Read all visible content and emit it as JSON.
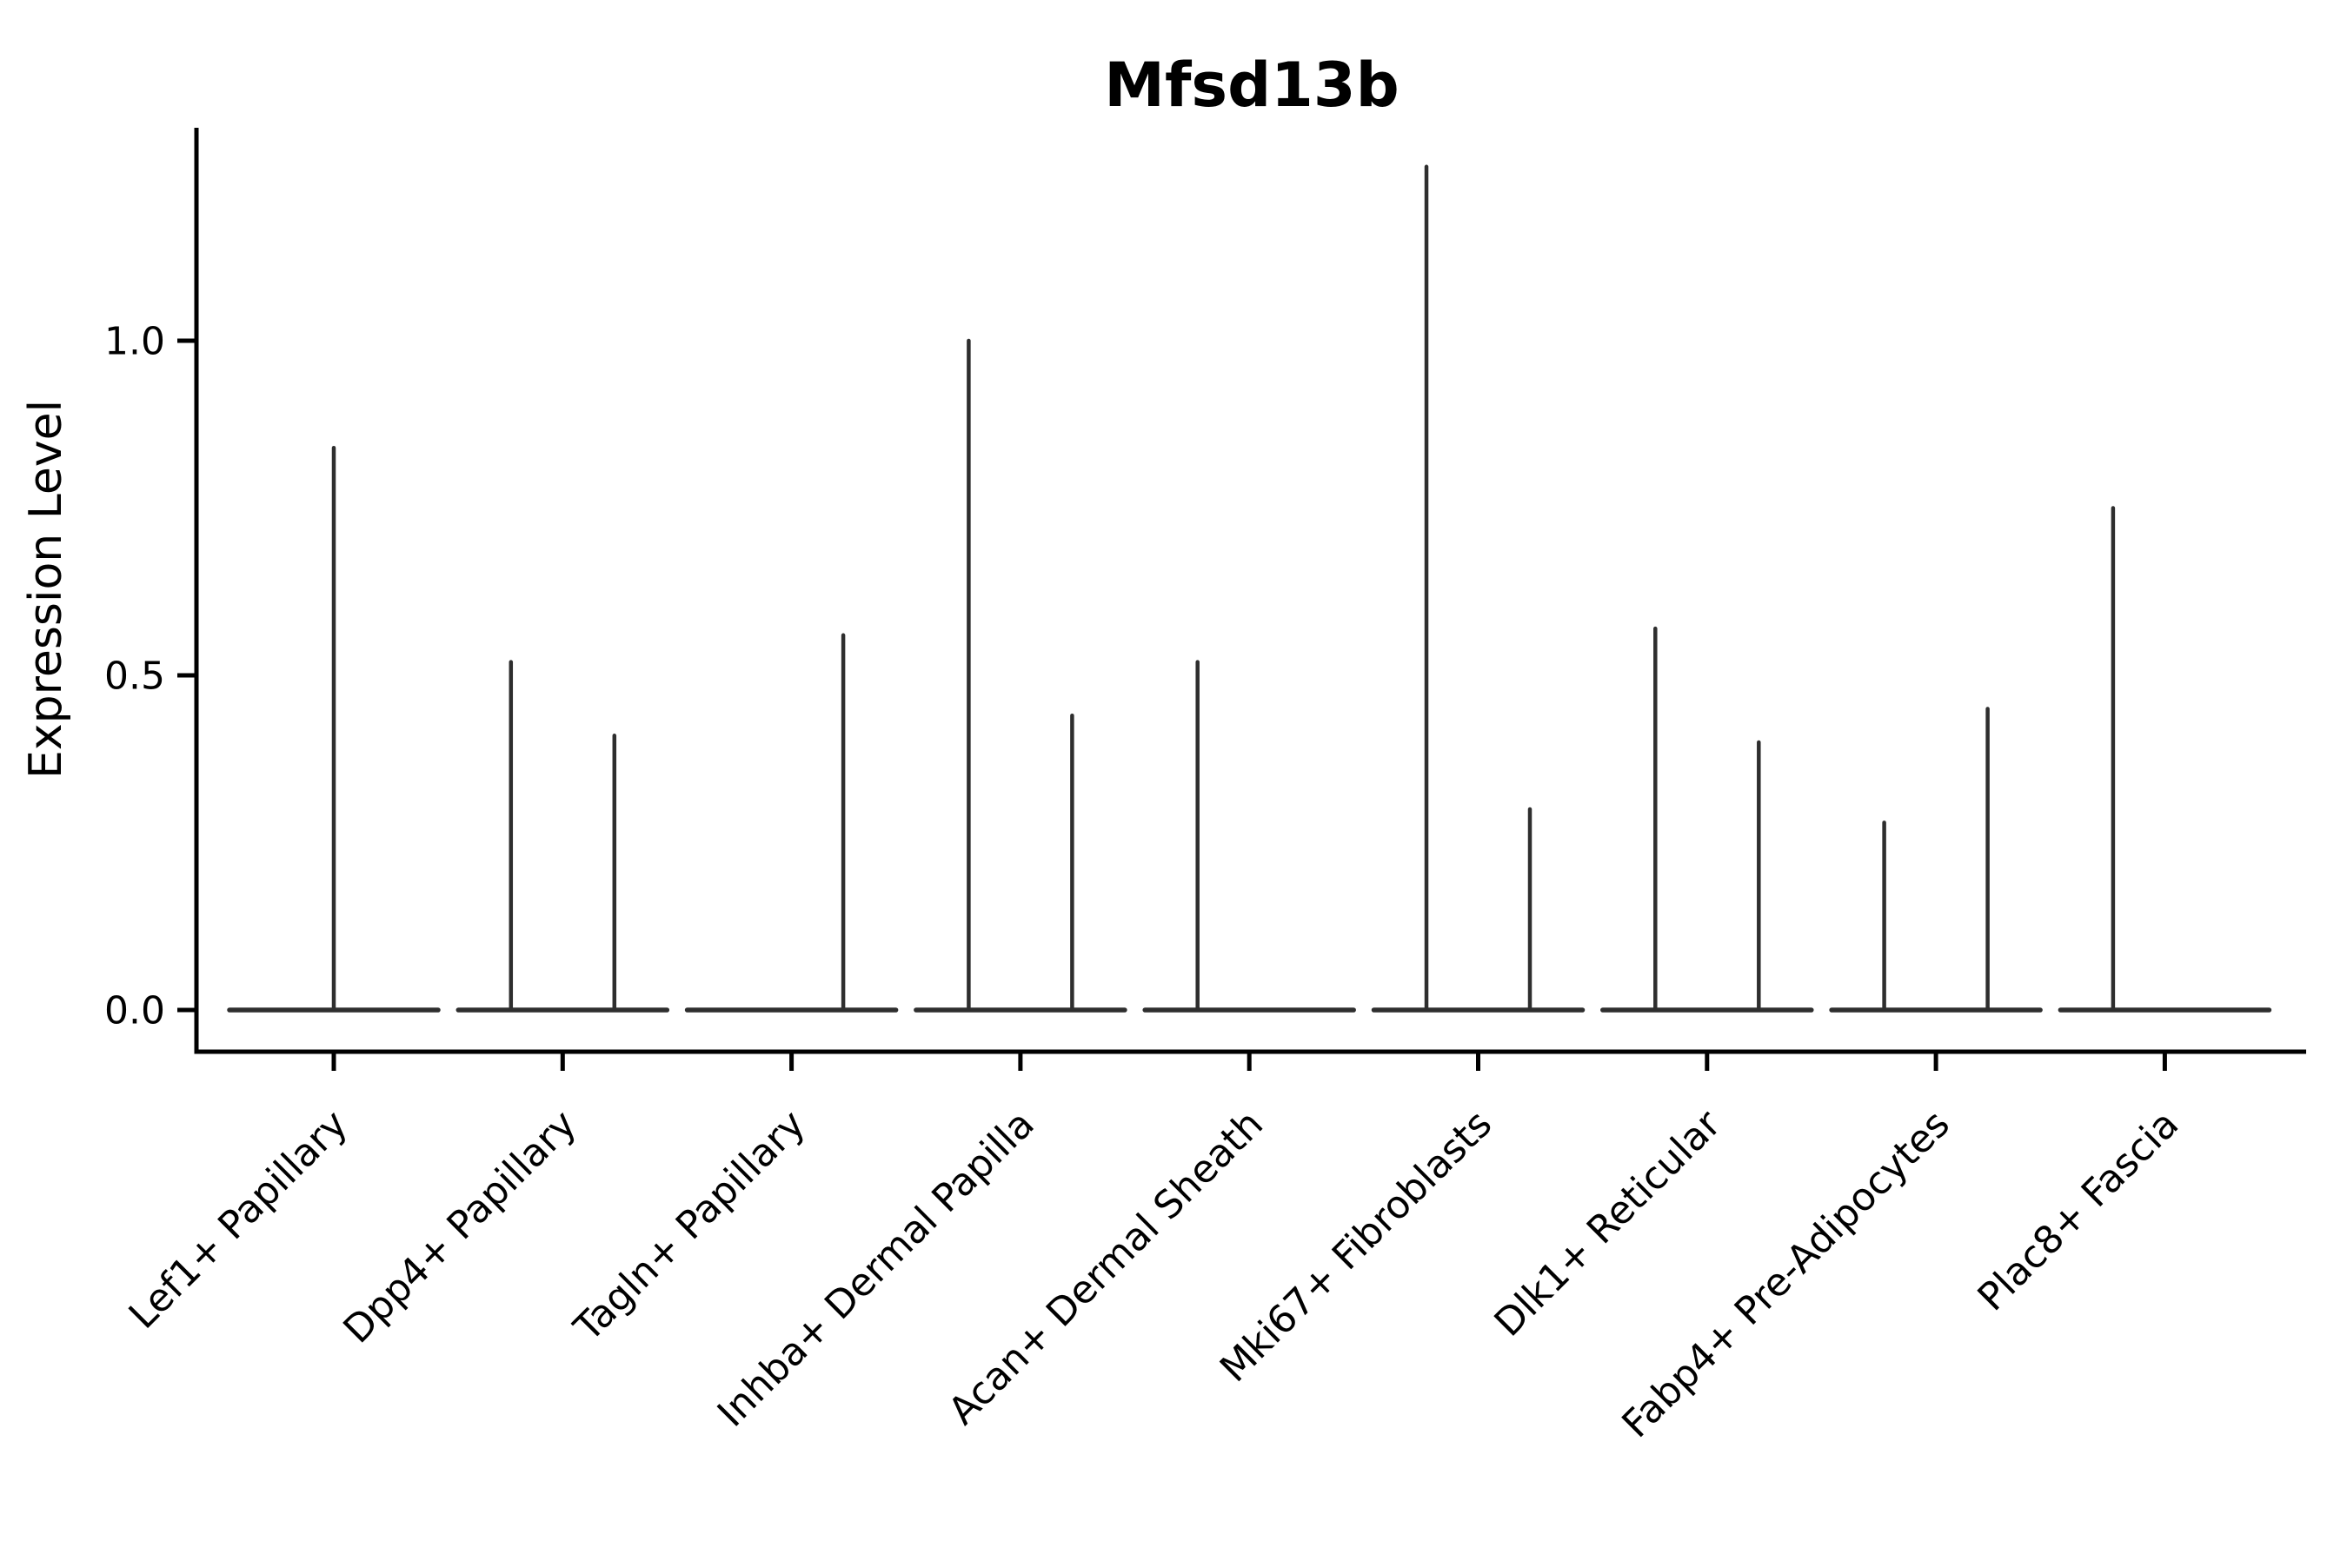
{
  "title": "Mfsd13b",
  "chart_data": {
    "type": "violin",
    "title": "Mfsd13b",
    "ylabel": "Expression Level",
    "xlabel": "",
    "ylim": [
      -0.06,
      1.32
    ],
    "yticks": [
      0.0,
      0.5,
      1.0
    ],
    "grid": false,
    "legend": "none",
    "background": "#ffffff",
    "categories": [
      "Lef1+ Papillary",
      "Dpp4+ Papillary",
      "Tagln+ Papillary",
      "Inhba+ Dermal Papilla",
      "Acan+ Dermal Sheath",
      "Mki67+ Fibroblasts",
      "Dlk1+ Reticular",
      "Fabp4+ Pre-Adipocytes",
      "Plac8+ Fascia"
    ],
    "baseline_value": 0.0,
    "violins": [
      {
        "category": "Lef1+ Papillary",
        "slot": "center",
        "max_expression": 0.84
      },
      {
        "category": "Dpp4+ Papillary",
        "slot": "left",
        "max_expression": 0.52
      },
      {
        "category": "Dpp4+ Papillary",
        "slot": "right",
        "max_expression": 0.41
      },
      {
        "category": "Tagln+ Papillary",
        "slot": "right",
        "max_expression": 0.56
      },
      {
        "category": "Inhba+ Dermal Papilla",
        "slot": "left",
        "max_expression": 1.0
      },
      {
        "category": "Inhba+ Dermal Papilla",
        "slot": "right",
        "max_expression": 0.44
      },
      {
        "category": "Acan+ Dermal Sheath",
        "slot": "left",
        "max_expression": 0.52
      },
      {
        "category": "Mki67+ Fibroblasts",
        "slot": "left",
        "max_expression": 1.26
      },
      {
        "category": "Mki67+ Fibroblasts",
        "slot": "right",
        "max_expression": 0.3
      },
      {
        "category": "Dlk1+ Reticular",
        "slot": "left",
        "max_expression": 0.57
      },
      {
        "category": "Dlk1+ Reticular",
        "slot": "right",
        "max_expression": 0.4
      },
      {
        "category": "Fabp4+ Pre-Adipocytes",
        "slot": "left",
        "max_expression": 0.28
      },
      {
        "category": "Fabp4+ Pre-Adipocytes",
        "slot": "right",
        "max_expression": 0.45
      },
      {
        "category": "Plac8+ Fascia",
        "slot": "left",
        "max_expression": 0.75
      }
    ],
    "colors": {
      "violin_stroke": "#2e2e2e",
      "axis": "#000000",
      "text": "#000000"
    }
  }
}
